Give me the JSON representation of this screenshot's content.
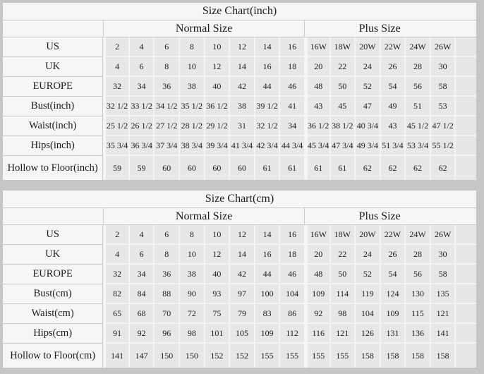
{
  "page_background": "#c6c6c6",
  "colors": {
    "panel_bg": "#f6f6f6",
    "data_cell_bg": "#e7e7e7",
    "grid_line": "#c8c8c8",
    "cell_separator": "#f4f4f4",
    "text": "#1c1c1c"
  },
  "chart_data": [
    {
      "type": "table",
      "title": "Size Chart(inch)",
      "column_groups": [
        {
          "label": "Normal Size",
          "span": 8
        },
        {
          "label": "Plus Size",
          "span": 6
        }
      ],
      "rows": [
        {
          "label": "US",
          "normal": [
            "2",
            "4",
            "6",
            "8",
            "10",
            "12",
            "14",
            "16"
          ],
          "plus": [
            "16W",
            "18W",
            "20W",
            "22W",
            "24W",
            "26W"
          ]
        },
        {
          "label": "UK",
          "normal": [
            "4",
            "6",
            "8",
            "10",
            "12",
            "14",
            "16",
            "18"
          ],
          "plus": [
            "20",
            "22",
            "24",
            "26",
            "28",
            "30"
          ]
        },
        {
          "label": "EUROPE",
          "normal": [
            "32",
            "34",
            "36",
            "38",
            "40",
            "42",
            "44",
            "46"
          ],
          "plus": [
            "48",
            "50",
            "52",
            "54",
            "56",
            "58"
          ]
        },
        {
          "label": "Bust(inch)",
          "normal": [
            "32 1/2",
            "33 1/2",
            "34 1/2",
            "35 1/2",
            "36 1/2",
            "38",
            "39 1/2",
            "41"
          ],
          "plus": [
            "43",
            "45",
            "47",
            "49",
            "51",
            "53"
          ]
        },
        {
          "label": "Waist(inch)",
          "normal": [
            "25 1/2",
            "26 1/2",
            "27 1/2",
            "28 1/2",
            "29 1/2",
            "31",
            "32 1/2",
            "34"
          ],
          "plus": [
            "36 1/2",
            "38 1/2",
            "40 3/4",
            "43",
            "45 1/2",
            "47 1/2"
          ]
        },
        {
          "label": "Hips(inch)",
          "normal": [
            "35 3/4",
            "36 3/4",
            "37 3/4",
            "38 3/4",
            "39 3/4",
            "41 3/4",
            "42 3/4",
            "44 3/4"
          ],
          "plus": [
            "45 3/4",
            "47 3/4",
            "49 3/4",
            "51 3/4",
            "53 3/4",
            "55 1/2"
          ]
        },
        {
          "label": "Hollow to Floor(inch)",
          "normal": [
            "59",
            "59",
            "60",
            "60",
            "60",
            "60",
            "61",
            "61"
          ],
          "plus": [
            "61",
            "61",
            "62",
            "62",
            "62",
            "62"
          ]
        }
      ]
    },
    {
      "type": "table",
      "title": "Size Chart(cm)",
      "column_groups": [
        {
          "label": "Normal Size",
          "span": 8
        },
        {
          "label": "Plus Size",
          "span": 6
        }
      ],
      "rows": [
        {
          "label": "US",
          "normal": [
            "2",
            "4",
            "6",
            "8",
            "10",
            "12",
            "14",
            "16"
          ],
          "plus": [
            "16W",
            "18W",
            "20W",
            "22W",
            "24W",
            "26W"
          ]
        },
        {
          "label": "UK",
          "normal": [
            "4",
            "6",
            "8",
            "10",
            "12",
            "14",
            "16",
            "18"
          ],
          "plus": [
            "20",
            "22",
            "24",
            "26",
            "28",
            "30"
          ]
        },
        {
          "label": "EUROPE",
          "normal": [
            "32",
            "34",
            "36",
            "38",
            "40",
            "42",
            "44",
            "46"
          ],
          "plus": [
            "48",
            "50",
            "52",
            "54",
            "56",
            "58"
          ]
        },
        {
          "label": "Bust(cm)",
          "normal": [
            "82",
            "84",
            "88",
            "90",
            "93",
            "97",
            "100",
            "104"
          ],
          "plus": [
            "109",
            "114",
            "119",
            "124",
            "130",
            "135"
          ]
        },
        {
          "label": "Waist(cm)",
          "normal": [
            "65",
            "68",
            "70",
            "72",
            "75",
            "79",
            "83",
            "86"
          ],
          "plus": [
            "92",
            "98",
            "104",
            "109",
            "115",
            "121"
          ]
        },
        {
          "label": "Hips(cm)",
          "normal": [
            "91",
            "92",
            "96",
            "98",
            "101",
            "105",
            "109",
            "112"
          ],
          "plus": [
            "116",
            "121",
            "126",
            "131",
            "136",
            "141"
          ]
        },
        {
          "label": "Hollow to Floor(cm)",
          "normal": [
            "141",
            "147",
            "150",
            "150",
            "152",
            "152",
            "155",
            "155"
          ],
          "plus": [
            "155",
            "155",
            "158",
            "158",
            "158",
            "158"
          ]
        }
      ]
    }
  ]
}
